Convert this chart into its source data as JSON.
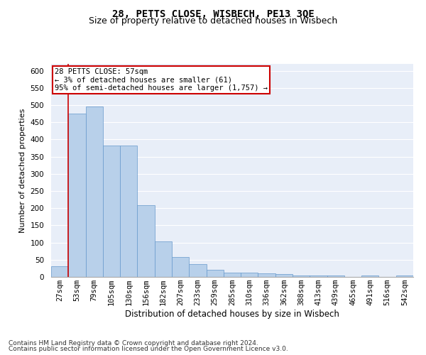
{
  "title1": "28, PETTS CLOSE, WISBECH, PE13 3QE",
  "title2": "Size of property relative to detached houses in Wisbech",
  "xlabel": "Distribution of detached houses by size in Wisbech",
  "ylabel": "Number of detached properties",
  "categories": [
    "27sqm",
    "53sqm",
    "79sqm",
    "105sqm",
    "130sqm",
    "156sqm",
    "182sqm",
    "207sqm",
    "233sqm",
    "259sqm",
    "285sqm",
    "310sqm",
    "336sqm",
    "362sqm",
    "388sqm",
    "413sqm",
    "439sqm",
    "465sqm",
    "491sqm",
    "516sqm",
    "542sqm"
  ],
  "values": [
    30,
    475,
    497,
    383,
    383,
    208,
    104,
    57,
    38,
    20,
    13,
    12,
    11,
    9,
    5,
    5,
    5,
    1,
    5,
    1,
    5
  ],
  "bar_color": "#b8d0ea",
  "bar_edge_color": "#6699cc",
  "annotation_text": "28 PETTS CLOSE: 57sqm\n← 3% of detached houses are smaller (61)\n95% of semi-detached houses are larger (1,757) →",
  "vline_color": "#cc0000",
  "annotation_box_color": "#ffffff",
  "annotation_box_edge": "#cc0000",
  "background_color": "#e8eef8",
  "grid_color": "#ffffff",
  "footer1": "Contains HM Land Registry data © Crown copyright and database right 2024.",
  "footer2": "Contains public sector information licensed under the Open Government Licence v3.0.",
  "ylim": [
    0,
    620
  ],
  "title1_fontsize": 10,
  "title2_fontsize": 9,
  "xlabel_fontsize": 8.5,
  "ylabel_fontsize": 8,
  "tick_fontsize": 7.5,
  "footer_fontsize": 6.5,
  "annotation_fontsize": 7.5
}
